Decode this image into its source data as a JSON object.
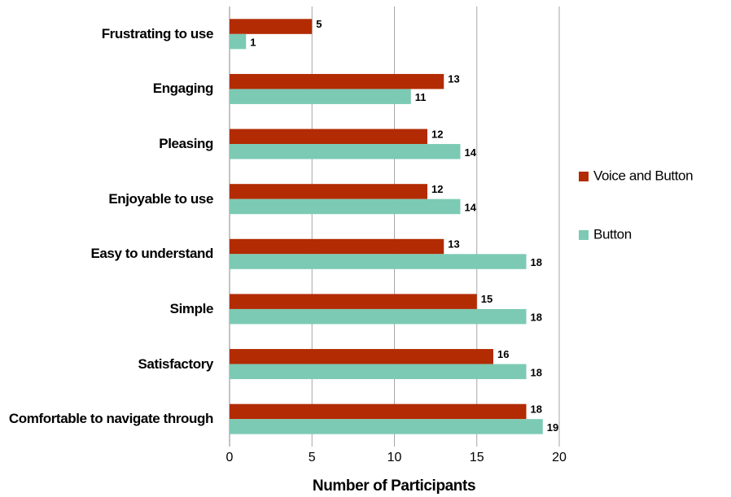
{
  "chart_data": {
    "type": "bar",
    "orientation": "horizontal",
    "x_label": "Number of Participants",
    "categories": [
      "Frustrating to use",
      "Engaging",
      "Pleasing",
      "Enjoyable to use",
      "Easy to understand",
      "Simple",
      "Satisfactory",
      "Comfortable to navigate through"
    ],
    "series": [
      {
        "name": "Voice and Button",
        "color": "#b22b02",
        "values": [
          5,
          13,
          12,
          12,
          13,
          15,
          16,
          18
        ]
      },
      {
        "name": "Button",
        "color": "#7ccab4",
        "values": [
          1,
          11,
          14,
          14,
          18,
          18,
          18,
          19
        ]
      }
    ],
    "xlim": [
      0,
      20
    ],
    "xticks": [
      0,
      5,
      10,
      15,
      20
    ],
    "grid": true,
    "legend": "right"
  }
}
